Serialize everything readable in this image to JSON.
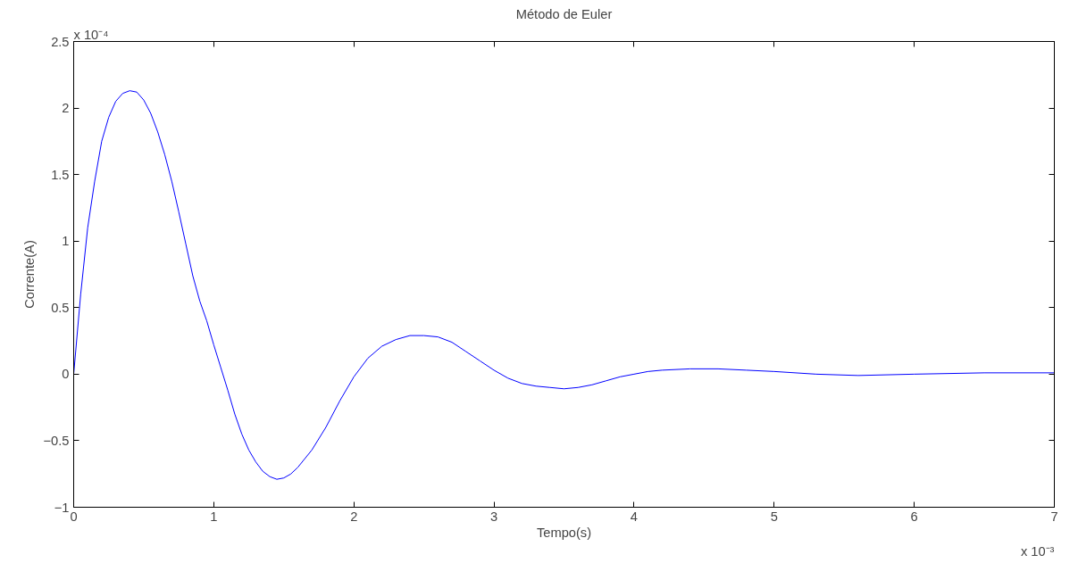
{
  "chart_data": {
    "type": "line",
    "title": "Método de Euler",
    "xlabel": "Tempo(s)",
    "ylabel": "Corrente(A)",
    "annotations": [
      "x 10⁻⁴",
      "x 10⁻³"
    ],
    "xlim": [
      0,
      7
    ],
    "ylim": [
      -1,
      2.5
    ],
    "xticks": [
      0,
      1,
      2,
      3,
      4,
      5,
      6,
      7
    ],
    "yticks": [
      -1,
      -0.5,
      0,
      0.5,
      1,
      1.5,
      2,
      2.5
    ],
    "series": [
      {
        "color": "#0000ff",
        "x": [
          0,
          0.05,
          0.1,
          0.15,
          0.2,
          0.25,
          0.3,
          0.35,
          0.4,
          0.45,
          0.5,
          0.55,
          0.6,
          0.65,
          0.7,
          0.75,
          0.8,
          0.85,
          0.9,
          0.95,
          1.0,
          1.05,
          1.1,
          1.15,
          1.2,
          1.25,
          1.3,
          1.35,
          1.4,
          1.45,
          1.5,
          1.55,
          1.6,
          1.7,
          1.8,
          1.9,
          2.0,
          2.1,
          2.2,
          2.3,
          2.4,
          2.5,
          2.6,
          2.7,
          2.8,
          2.9,
          3.0,
          3.1,
          3.2,
          3.3,
          3.4,
          3.5,
          3.6,
          3.7,
          3.8,
          3.9,
          4.0,
          4.1,
          4.2,
          4.4,
          4.6,
          4.8,
          5.0,
          5.3,
          5.6,
          6.0,
          6.5,
          7.0
        ],
        "values": [
          0,
          0.6,
          1.1,
          1.45,
          1.75,
          1.93,
          2.05,
          2.11,
          2.13,
          2.12,
          2.06,
          1.96,
          1.82,
          1.65,
          1.45,
          1.22,
          0.98,
          0.74,
          0.55,
          0.4,
          0.22,
          0.05,
          -0.12,
          -0.3,
          -0.45,
          -0.57,
          -0.66,
          -0.73,
          -0.77,
          -0.79,
          -0.78,
          -0.75,
          -0.7,
          -0.57,
          -0.4,
          -0.2,
          -0.02,
          0.12,
          0.21,
          0.26,
          0.29,
          0.29,
          0.28,
          0.24,
          0.17,
          0.1,
          0.03,
          -0.03,
          -0.07,
          -0.09,
          -0.1,
          -0.11,
          -0.1,
          -0.08,
          -0.05,
          -0.02,
          0,
          0.02,
          0.03,
          0.04,
          0.04,
          0.03,
          0.02,
          0,
          -0.01,
          0,
          0.01,
          0.01
        ]
      }
    ]
  }
}
